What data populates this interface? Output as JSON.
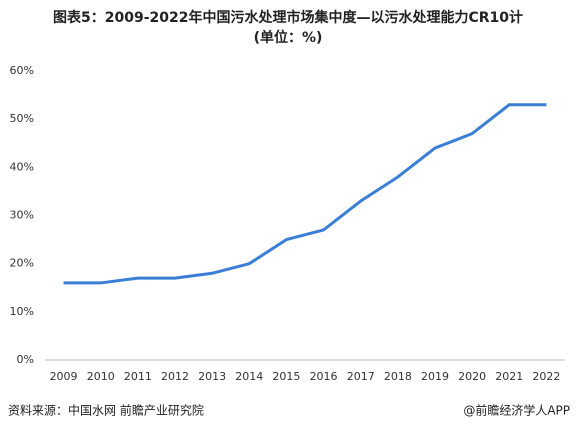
{
  "chart_data": {
    "type": "line",
    "title": "图表5：2009-2022年中国污水处理市场集中度—以污水处理能力CR10计",
    "subtitle": "(单位：%)",
    "categories": [
      "2009",
      "2010",
      "2011",
      "2012",
      "2013",
      "2014",
      "2015",
      "2016",
      "2017",
      "2018",
      "2019",
      "2020",
      "2021",
      "2022"
    ],
    "series": [
      {
        "name": "CR10",
        "color": "#3a7fd5",
        "values": [
          16,
          16,
          17,
          17,
          18,
          20,
          25,
          27,
          33,
          38,
          44,
          47,
          53,
          53
        ]
      }
    ],
    "ylim": [
      0,
      60
    ],
    "yticks": [
      {
        "value": 0,
        "label": "0%"
      },
      {
        "value": 10,
        "label": "10%"
      },
      {
        "value": 20,
        "label": "20%"
      },
      {
        "value": 30,
        "label": "30%"
      },
      {
        "value": 40,
        "label": "40%"
      },
      {
        "value": 50,
        "label": "50%"
      },
      {
        "value": 60,
        "label": "60%"
      }
    ],
    "grid": false,
    "source": "资料来源：中国水网 前瞻产业研究院",
    "credit": "@前瞻经济学人APP"
  }
}
